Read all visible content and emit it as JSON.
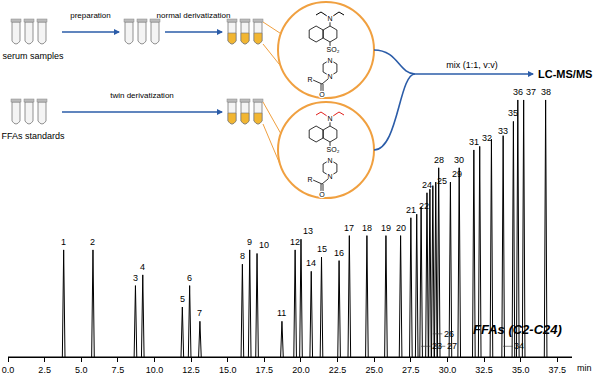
{
  "chart_data": {
    "type": "line",
    "x": [
      3.8,
      5.8,
      8.7,
      9.2,
      11.9,
      12.4,
      13.1,
      16.0,
      16.5,
      17.0,
      18.7,
      19.6,
      20.0,
      20.7,
      21.4,
      22.6,
      23.3,
      24.5,
      25.8,
      26.8,
      27.5,
      27.9,
      28.2,
      28.6,
      28.8,
      29.0,
      29.2,
      29.4,
      30.2,
      30.8,
      31.8,
      32.2,
      33.0,
      33.8,
      34.5,
      34.8,
      35.2,
      36.7
    ],
    "values": [
      30,
      30,
      20,
      23,
      14,
      20,
      10,
      26,
      30,
      29,
      10,
      30,
      33,
      24,
      28,
      27,
      34,
      34,
      34,
      34,
      39,
      40,
      42,
      46,
      47,
      48,
      49,
      53,
      49,
      53,
      58,
      59,
      61,
      62,
      66,
      72,
      72,
      72
    ],
    "labels": [
      "1",
      "2",
      "3",
      "4",
      "5",
      "6",
      "7",
      "8",
      "9",
      "10",
      "11",
      "12",
      "13",
      "14",
      "15",
      "16",
      "17",
      "18",
      "19",
      "20",
      "21",
      "22",
      "23",
      "24",
      "25",
      "26",
      "27",
      "28",
      "29",
      "30",
      "31",
      "32",
      "33",
      "34",
      "35",
      "36",
      "37",
      "38"
    ],
    "color": "#000000",
    "x_label": "min",
    "xlim": [
      0,
      38.5
    ],
    "xticks": [
      {
        "value": 0,
        "label": "0.0"
      },
      2.5,
      {
        "value": 5,
        "label": "5.0"
      },
      7.5,
      {
        "value": 10,
        "label": "10.0"
      },
      12.5,
      {
        "value": 15,
        "label": "15.0"
      },
      17.5,
      {
        "value": 20,
        "label": "20.0"
      },
      22.5,
      {
        "value": 25,
        "label": "25.0"
      },
      27.5,
      {
        "value": 30,
        "label": "30.0"
      },
      32.5,
      {
        "value": 35,
        "label": "35.0"
      },
      37.5
    ],
    "ylim": [
      0,
      100
    ],
    "tick_labels": "x",
    "grid": false,
    "annotations": [
      "FFAs (C2-C24)"
    ]
  },
  "diagram": {
    "rows": [
      {
        "sample": "serum samples",
        "steps": [
          {
            "label": "preparation"
          },
          {
            "label": "normal derivatization"
          }
        ]
      },
      {
        "sample": "FFAs standards",
        "steps": [
          {
            "label": "twin derivatization"
          }
        ]
      }
    ],
    "reagents": [
      {
        "atoms": [
          "N",
          "SO₂",
          "N",
          "N",
          "R",
          "O"
        ],
        "color": "#000000"
      },
      {
        "atoms": [
          "N",
          "SO₂",
          "N",
          "N",
          "R",
          "O"
        ],
        "color": "#e0201c"
      }
    ],
    "merge": {
      "label": "mix (1:1, v:v)",
      "target": "LC-MS/MS"
    }
  }
}
